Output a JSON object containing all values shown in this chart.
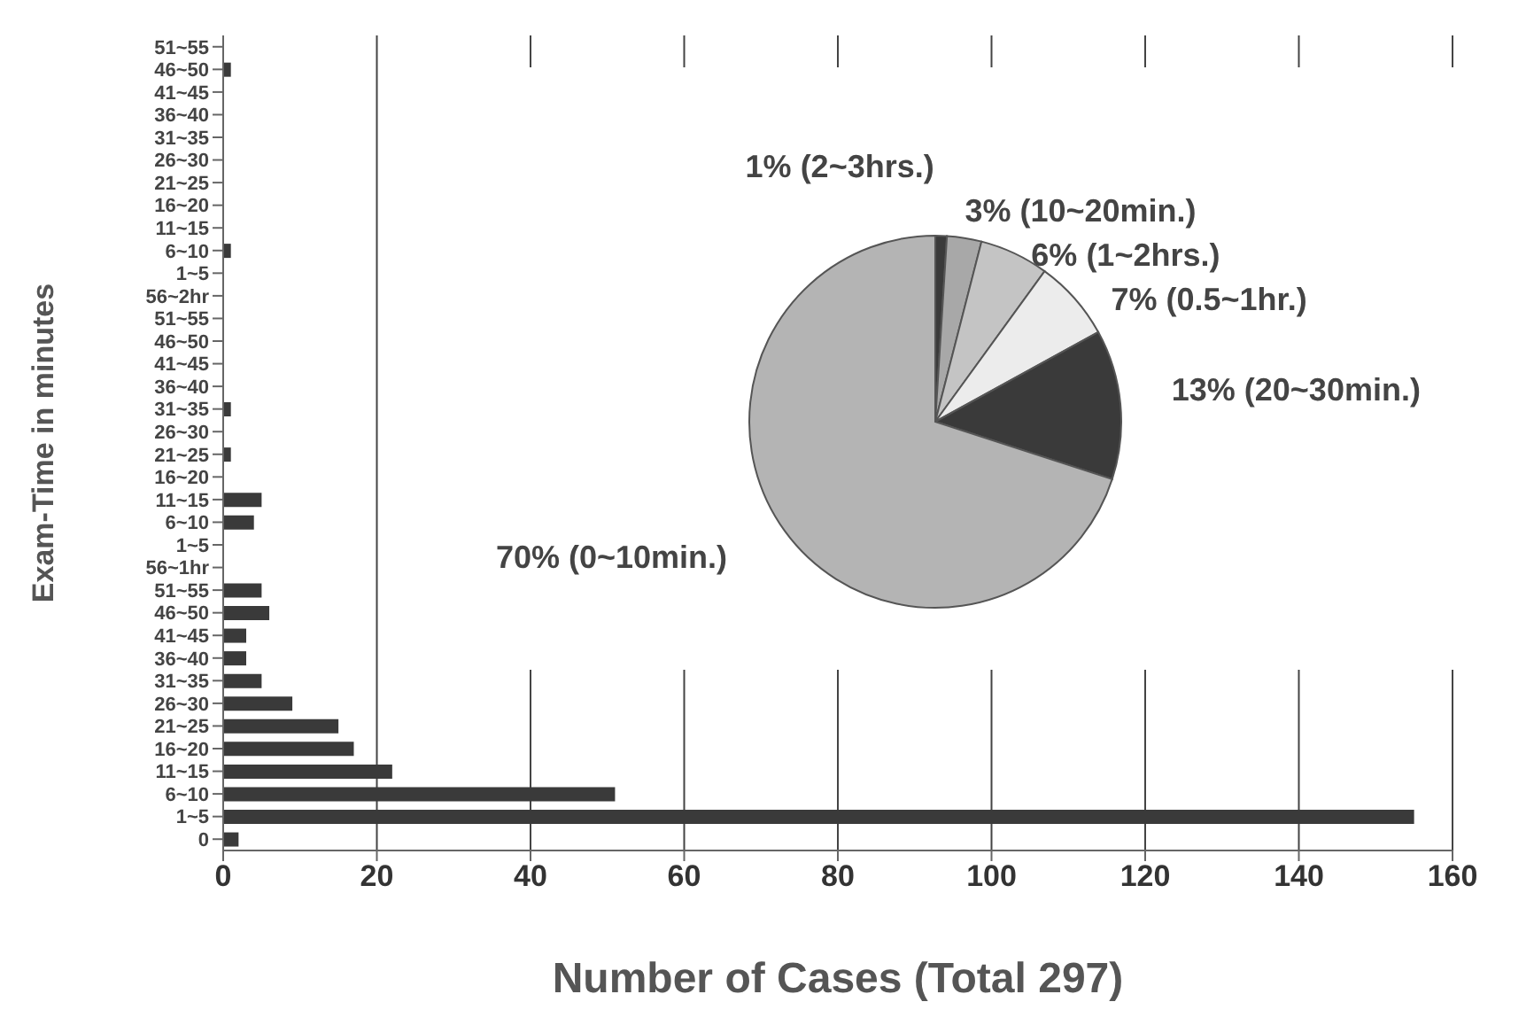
{
  "chart_data": [
    {
      "type": "bar",
      "orientation": "horizontal",
      "xlabel": "Number of Cases   (Total  297)",
      "ylabel": "Exam-Time in minutes",
      "categories": [
        "51~55",
        "46~50",
        "41~45",
        "36~40",
        "31~35",
        "26~30",
        "21~25",
        "16~20",
        "11~15",
        "6~10",
        "1~5",
        "56~2hr",
        "51~55",
        "46~50",
        "41~45",
        "36~40",
        "31~35",
        "26~30",
        "21~25",
        "16~20",
        "11~15",
        "6~10",
        "1~5",
        "56~1hr",
        "51~55",
        "46~50",
        "41~45",
        "36~40",
        "31~35",
        "26~30",
        "21~25",
        "16~20",
        "11~15",
        "6~10",
        "1~5",
        "0"
      ],
      "values": [
        0,
        1,
        0,
        0,
        0,
        0,
        0,
        0,
        0,
        1,
        0,
        0,
        0,
        0,
        0,
        0,
        1,
        0,
        1,
        0,
        5,
        4,
        0,
        0,
        5,
        6,
        3,
        3,
        5,
        9,
        15,
        17,
        22,
        51,
        155,
        2
      ],
      "color": "#3a3a3a",
      "xlim": [
        0,
        160
      ],
      "xticks": [
        0,
        20,
        40,
        60,
        80,
        100,
        120,
        140,
        160
      ],
      "grid": "x",
      "legend": false
    },
    {
      "type": "pie",
      "categories": [
        "(2~3hrs.)",
        "(10~20min.)",
        "(1~2hrs.)",
        "(0.5~1hr.)",
        "(20~30min.)",
        "(0~10min.)"
      ],
      "values": [
        1,
        3,
        6,
        7,
        13,
        70
      ],
      "value_labels": [
        "1%",
        "3%",
        "6%",
        "7%",
        "13%",
        "70%"
      ],
      "colors": [
        "#3a3a3a",
        "#a8a8a8",
        "#c4c4c4",
        "#ececec",
        "#3a3a3a",
        "#b4b4b4"
      ],
      "legend": false
    }
  ]
}
